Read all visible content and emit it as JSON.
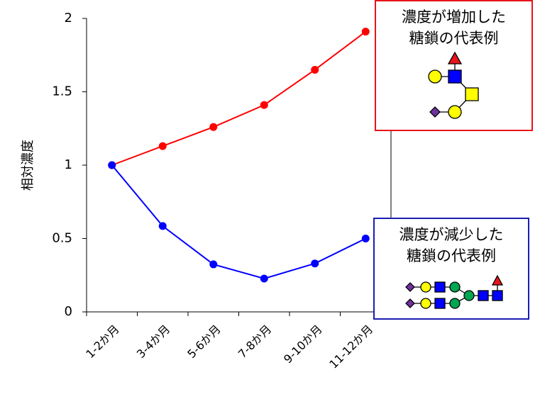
{
  "chart_data": {
    "type": "line",
    "y_label": "相対濃度",
    "categories": [
      "1-2か月",
      "3-4か月",
      "5-6か月",
      "7-8か月",
      "9-10か月",
      "11-12か月"
    ],
    "series": [
      {
        "color": "#ff0000",
        "values": [
          1,
          1.13,
          1.26,
          1.41,
          1.65,
          1.91
        ]
      },
      {
        "color": "#0000ff",
        "values": [
          1,
          0.585,
          0.324,
          0.227,
          0.33,
          0.5
        ]
      }
    ],
    "ylim": [
      0,
      2
    ],
    "yticks": [
      0,
      0.5,
      1,
      1.5,
      2
    ],
    "annotations": [
      {
        "lines": [
          "濃度が増加した",
          "糖鎖の代表例"
        ],
        "color": "#e8141b"
      },
      {
        "lines": [
          "濃度が減少した",
          "糖鎖の代表例"
        ],
        "color": "#1c1cb4"
      }
    ]
  }
}
